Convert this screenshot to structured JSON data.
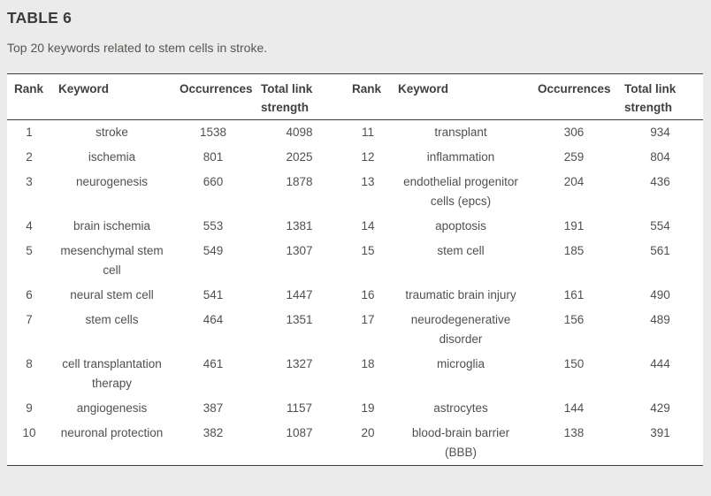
{
  "table": {
    "title": "TABLE 6",
    "caption": "Top 20 keywords related to stem cells in stroke.",
    "columns": [
      "Rank",
      "Keyword",
      "Occurrences",
      "Total link strength",
      "Rank",
      "Keyword",
      "Occurrences",
      "Total link strength"
    ],
    "rows": [
      [
        1,
        "stroke",
        1538,
        4098,
        11,
        "transplant",
        306,
        934
      ],
      [
        2,
        "ischemia",
        801,
        2025,
        12,
        "inflammation",
        259,
        804
      ],
      [
        3,
        "neurogenesis",
        660,
        1878,
        13,
        "endothelial progenitor cells (epcs)",
        204,
        436
      ],
      [
        4,
        "brain ischemia",
        553,
        1381,
        14,
        "apoptosis",
        191,
        554
      ],
      [
        5,
        "mesenchymal stem cell",
        549,
        1307,
        15,
        "stem cell",
        185,
        561
      ],
      [
        6,
        "neural stem cell",
        541,
        1447,
        16,
        "traumatic brain injury",
        161,
        490
      ],
      [
        7,
        "stem cells",
        464,
        1351,
        17,
        "neurodegenerative disorder",
        156,
        489
      ],
      [
        8,
        "cell transplantation therapy",
        461,
        1327,
        18,
        "microglia",
        150,
        444
      ],
      [
        9,
        "angiogenesis",
        387,
        1157,
        19,
        "astrocytes",
        144,
        429
      ],
      [
        10,
        "neuronal protection",
        382,
        1087,
        20,
        "blood-brain barrier (BBB)",
        138,
        391
      ]
    ]
  },
  "chart_data": {
    "type": "table",
    "title": "TABLE 6",
    "subtitle": "Top 20 keywords related to stem cells in stroke.",
    "columns": [
      "Rank",
      "Keyword",
      "Occurrences",
      "Total link strength"
    ],
    "records": [
      {
        "rank": 1,
        "keyword": "stroke",
        "occurrences": 1538,
        "total_link_strength": 4098
      },
      {
        "rank": 2,
        "keyword": "ischemia",
        "occurrences": 801,
        "total_link_strength": 2025
      },
      {
        "rank": 3,
        "keyword": "neurogenesis",
        "occurrences": 660,
        "total_link_strength": 1878
      },
      {
        "rank": 4,
        "keyword": "brain ischemia",
        "occurrences": 553,
        "total_link_strength": 1381
      },
      {
        "rank": 5,
        "keyword": "mesenchymal stem cell",
        "occurrences": 549,
        "total_link_strength": 1307
      },
      {
        "rank": 6,
        "keyword": "neural stem cell",
        "occurrences": 541,
        "total_link_strength": 1447
      },
      {
        "rank": 7,
        "keyword": "stem cells",
        "occurrences": 464,
        "total_link_strength": 1351
      },
      {
        "rank": 8,
        "keyword": "cell transplantation therapy",
        "occurrences": 461,
        "total_link_strength": 1327
      },
      {
        "rank": 9,
        "keyword": "angiogenesis",
        "occurrences": 387,
        "total_link_strength": 1157
      },
      {
        "rank": 10,
        "keyword": "neuronal protection",
        "occurrences": 382,
        "total_link_strength": 1087
      },
      {
        "rank": 11,
        "keyword": "transplant",
        "occurrences": 306,
        "total_link_strength": 934
      },
      {
        "rank": 12,
        "keyword": "inflammation",
        "occurrences": 259,
        "total_link_strength": 804
      },
      {
        "rank": 13,
        "keyword": "endothelial progenitor cells (epcs)",
        "occurrences": 204,
        "total_link_strength": 436
      },
      {
        "rank": 14,
        "keyword": "apoptosis",
        "occurrences": 191,
        "total_link_strength": 554
      },
      {
        "rank": 15,
        "keyword": "stem cell",
        "occurrences": 185,
        "total_link_strength": 561
      },
      {
        "rank": 16,
        "keyword": "traumatic brain injury",
        "occurrences": 161,
        "total_link_strength": 490
      },
      {
        "rank": 17,
        "keyword": "neurodegenerative disorder",
        "occurrences": 156,
        "total_link_strength": 489
      },
      {
        "rank": 18,
        "keyword": "microglia",
        "occurrences": 150,
        "total_link_strength": 444
      },
      {
        "rank": 19,
        "keyword": "astrocytes",
        "occurrences": 144,
        "total_link_strength": 429
      },
      {
        "rank": 20,
        "keyword": "blood-brain barrier (BBB)",
        "occurrences": 138,
        "total_link_strength": 391
      }
    ]
  },
  "colors": {
    "page_background": "#ebebeb",
    "table_background": "#ffffff",
    "border": "#3d3d3d",
    "title_text": "#3c3c3c",
    "body_text": "#505050"
  }
}
